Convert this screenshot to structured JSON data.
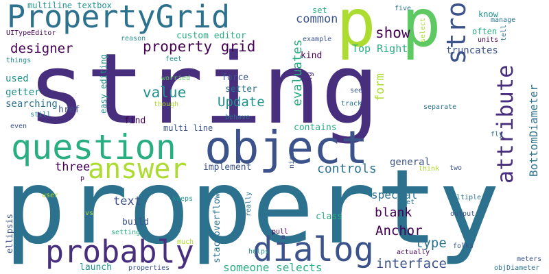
{
  "palette": {
    "dark_purple": "#440154",
    "indigo": "#472f7d",
    "slate": "#3b528b",
    "teal_blue": "#2c728e",
    "teal": "#21918c",
    "green_teal": "#28ae80",
    "green": "#5ec962",
    "lime": "#addc30"
  },
  "words": [
    {
      "text": "property",
      "color": "#2c728e"
    },
    {
      "text": "string",
      "color": "#472f7d"
    },
    {
      "text": "p",
      "color": "#addc30"
    },
    {
      "text": "p",
      "color": "#5ec962"
    },
    {
      "text": "object",
      "color": "#3b528b"
    },
    {
      "text": "question",
      "color": "#28ae80"
    },
    {
      "text": "PropertyGrid",
      "color": "#2c728e"
    },
    {
      "text": "dialog",
      "color": "#3b528b"
    },
    {
      "text": "probably",
      "color": "#472f7d"
    },
    {
      "text": "answer",
      "color": "#addc30"
    },
    {
      "text": "strong",
      "color": "#3b528b"
    },
    {
      "text": "attribute",
      "color": "#472f7d"
    },
    {
      "text": "property grid",
      "color": "#440154"
    },
    {
      "text": "designer",
      "color": "#440154"
    },
    {
      "text": "value",
      "color": "#21918c"
    },
    {
      "text": "Update",
      "color": "#21918c"
    },
    {
      "text": "show",
      "color": "#440154"
    },
    {
      "text": "common",
      "color": "#3b528b"
    },
    {
      "text": "interface",
      "color": "#3b528b"
    },
    {
      "text": "controls",
      "color": "#2c728e"
    },
    {
      "text": "Anchor",
      "color": "#440154"
    },
    {
      "text": "type",
      "color": "#2c728e"
    },
    {
      "text": "blank",
      "color": "#440154"
    },
    {
      "text": "three",
      "color": "#440154"
    },
    {
      "text": "text",
      "color": "#3b528b"
    },
    {
      "text": "Top Right",
      "color": "#28ae80"
    },
    {
      "text": "evaluates",
      "color": "#28ae80"
    },
    {
      "text": "BottomDiameter",
      "color": "#2c728e"
    },
    {
      "text": "form",
      "color": "#addc30"
    },
    {
      "text": "special",
      "color": "#2c728e"
    },
    {
      "text": "someone selects",
      "color": "#28ae80"
    },
    {
      "text": "general",
      "color": "#3b528b"
    },
    {
      "text": "truncates",
      "color": "#3b528b"
    },
    {
      "text": "custom editor",
      "color": "#28ae80"
    },
    {
      "text": "multiline textbox",
      "color": "#21918c"
    },
    {
      "text": "searching",
      "color": "#2c728e"
    },
    {
      "text": "getter",
      "color": "#21918c"
    },
    {
      "text": "used",
      "color": "#21918c"
    },
    {
      "text": "setter",
      "color": "#2c728e"
    },
    {
      "text": "force",
      "color": "#3b528b"
    },
    {
      "text": "href",
      "color": "#3b528b"
    },
    {
      "text": "find",
      "color": "#440154"
    },
    {
      "text": "build",
      "color": "#3b528b"
    },
    {
      "text": "launch",
      "color": "#21918c"
    },
    {
      "text": "kind",
      "color": "#440154"
    },
    {
      "text": "long",
      "color": "#472f7d"
    },
    {
      "text": "contains",
      "color": "#28ae80"
    },
    {
      "text": "class",
      "color": "#28ae80"
    },
    {
      "text": "implement",
      "color": "#3b528b"
    },
    {
      "text": "multi line",
      "color": "#3b528b"
    },
    {
      "text": "stackoverflow",
      "color": "#2c728e"
    },
    {
      "text": "easy editing",
      "color": "#21918c"
    },
    {
      "text": "often",
      "color": "#28ae80"
    },
    {
      "text": "know",
      "color": "#21918c"
    },
    {
      "text": "set",
      "color": "#28ae80"
    },
    {
      "text": "ellipsis",
      "color": "#3b528b"
    },
    {
      "text": "UITypeEditor",
      "color": "#440154"
    },
    {
      "text": "reason",
      "color": "#21918c"
    },
    {
      "text": "example",
      "color": "#3b528b"
    },
    {
      "text": "five",
      "color": "#2c728e"
    },
    {
      "text": "manage",
      "color": "#2c728e"
    },
    {
      "text": "select",
      "color": "#addc30"
    },
    {
      "text": "tell",
      "color": "#2c728e"
    },
    {
      "text": "units",
      "color": "#440154"
    },
    {
      "text": "things",
      "color": "#21918c"
    },
    {
      "text": "feet",
      "color": "#21918c"
    },
    {
      "text": "worried",
      "color": "#5ec962"
    },
    {
      "text": "see",
      "color": "#3b528b"
    },
    {
      "text": "track",
      "color": "#2c728e"
    },
    {
      "text": "separate",
      "color": "#2c728e"
    },
    {
      "text": "though",
      "color": "#addc30"
    },
    {
      "text": "still",
      "color": "#21918c"
    },
    {
      "text": "behave",
      "color": "#2c728e"
    },
    {
      "text": "even",
      "color": "#3b528b"
    },
    {
      "text": "fly",
      "color": "#2c728e"
    },
    {
      "text": "think",
      "color": "#addc30"
    },
    {
      "text": "two",
      "color": "#3b528b"
    },
    {
      "text": "nice",
      "color": "#3b528b"
    },
    {
      "text": "p",
      "color": "#440154"
    },
    {
      "text": "user",
      "color": "#addc30"
    },
    {
      "text": "keeps",
      "color": "#21918c"
    },
    {
      "text": "Yet",
      "color": "#2c728e"
    },
    {
      "text": "multiple",
      "color": "#2c728e"
    },
    {
      "text": "really",
      "color": "#2c728e"
    },
    {
      "text": "vs",
      "color": "#addc30"
    },
    {
      "text": "output",
      "color": "#3b528b"
    },
    {
      "text": "setting",
      "color": "#28ae80"
    },
    {
      "text": "pull",
      "color": "#440154"
    },
    {
      "text": "much",
      "color": "#addc30"
    },
    {
      "text": "helps",
      "color": "#21918c"
    },
    {
      "text": "actually",
      "color": "#440154"
    },
    {
      "text": "folks",
      "color": "#3b528b"
    },
    {
      "text": "properties",
      "color": "#3b528b"
    },
    {
      "text": "meters",
      "color": "#3b528b"
    },
    {
      "text": "objDiameter",
      "color": "#2c728e"
    }
  ]
}
